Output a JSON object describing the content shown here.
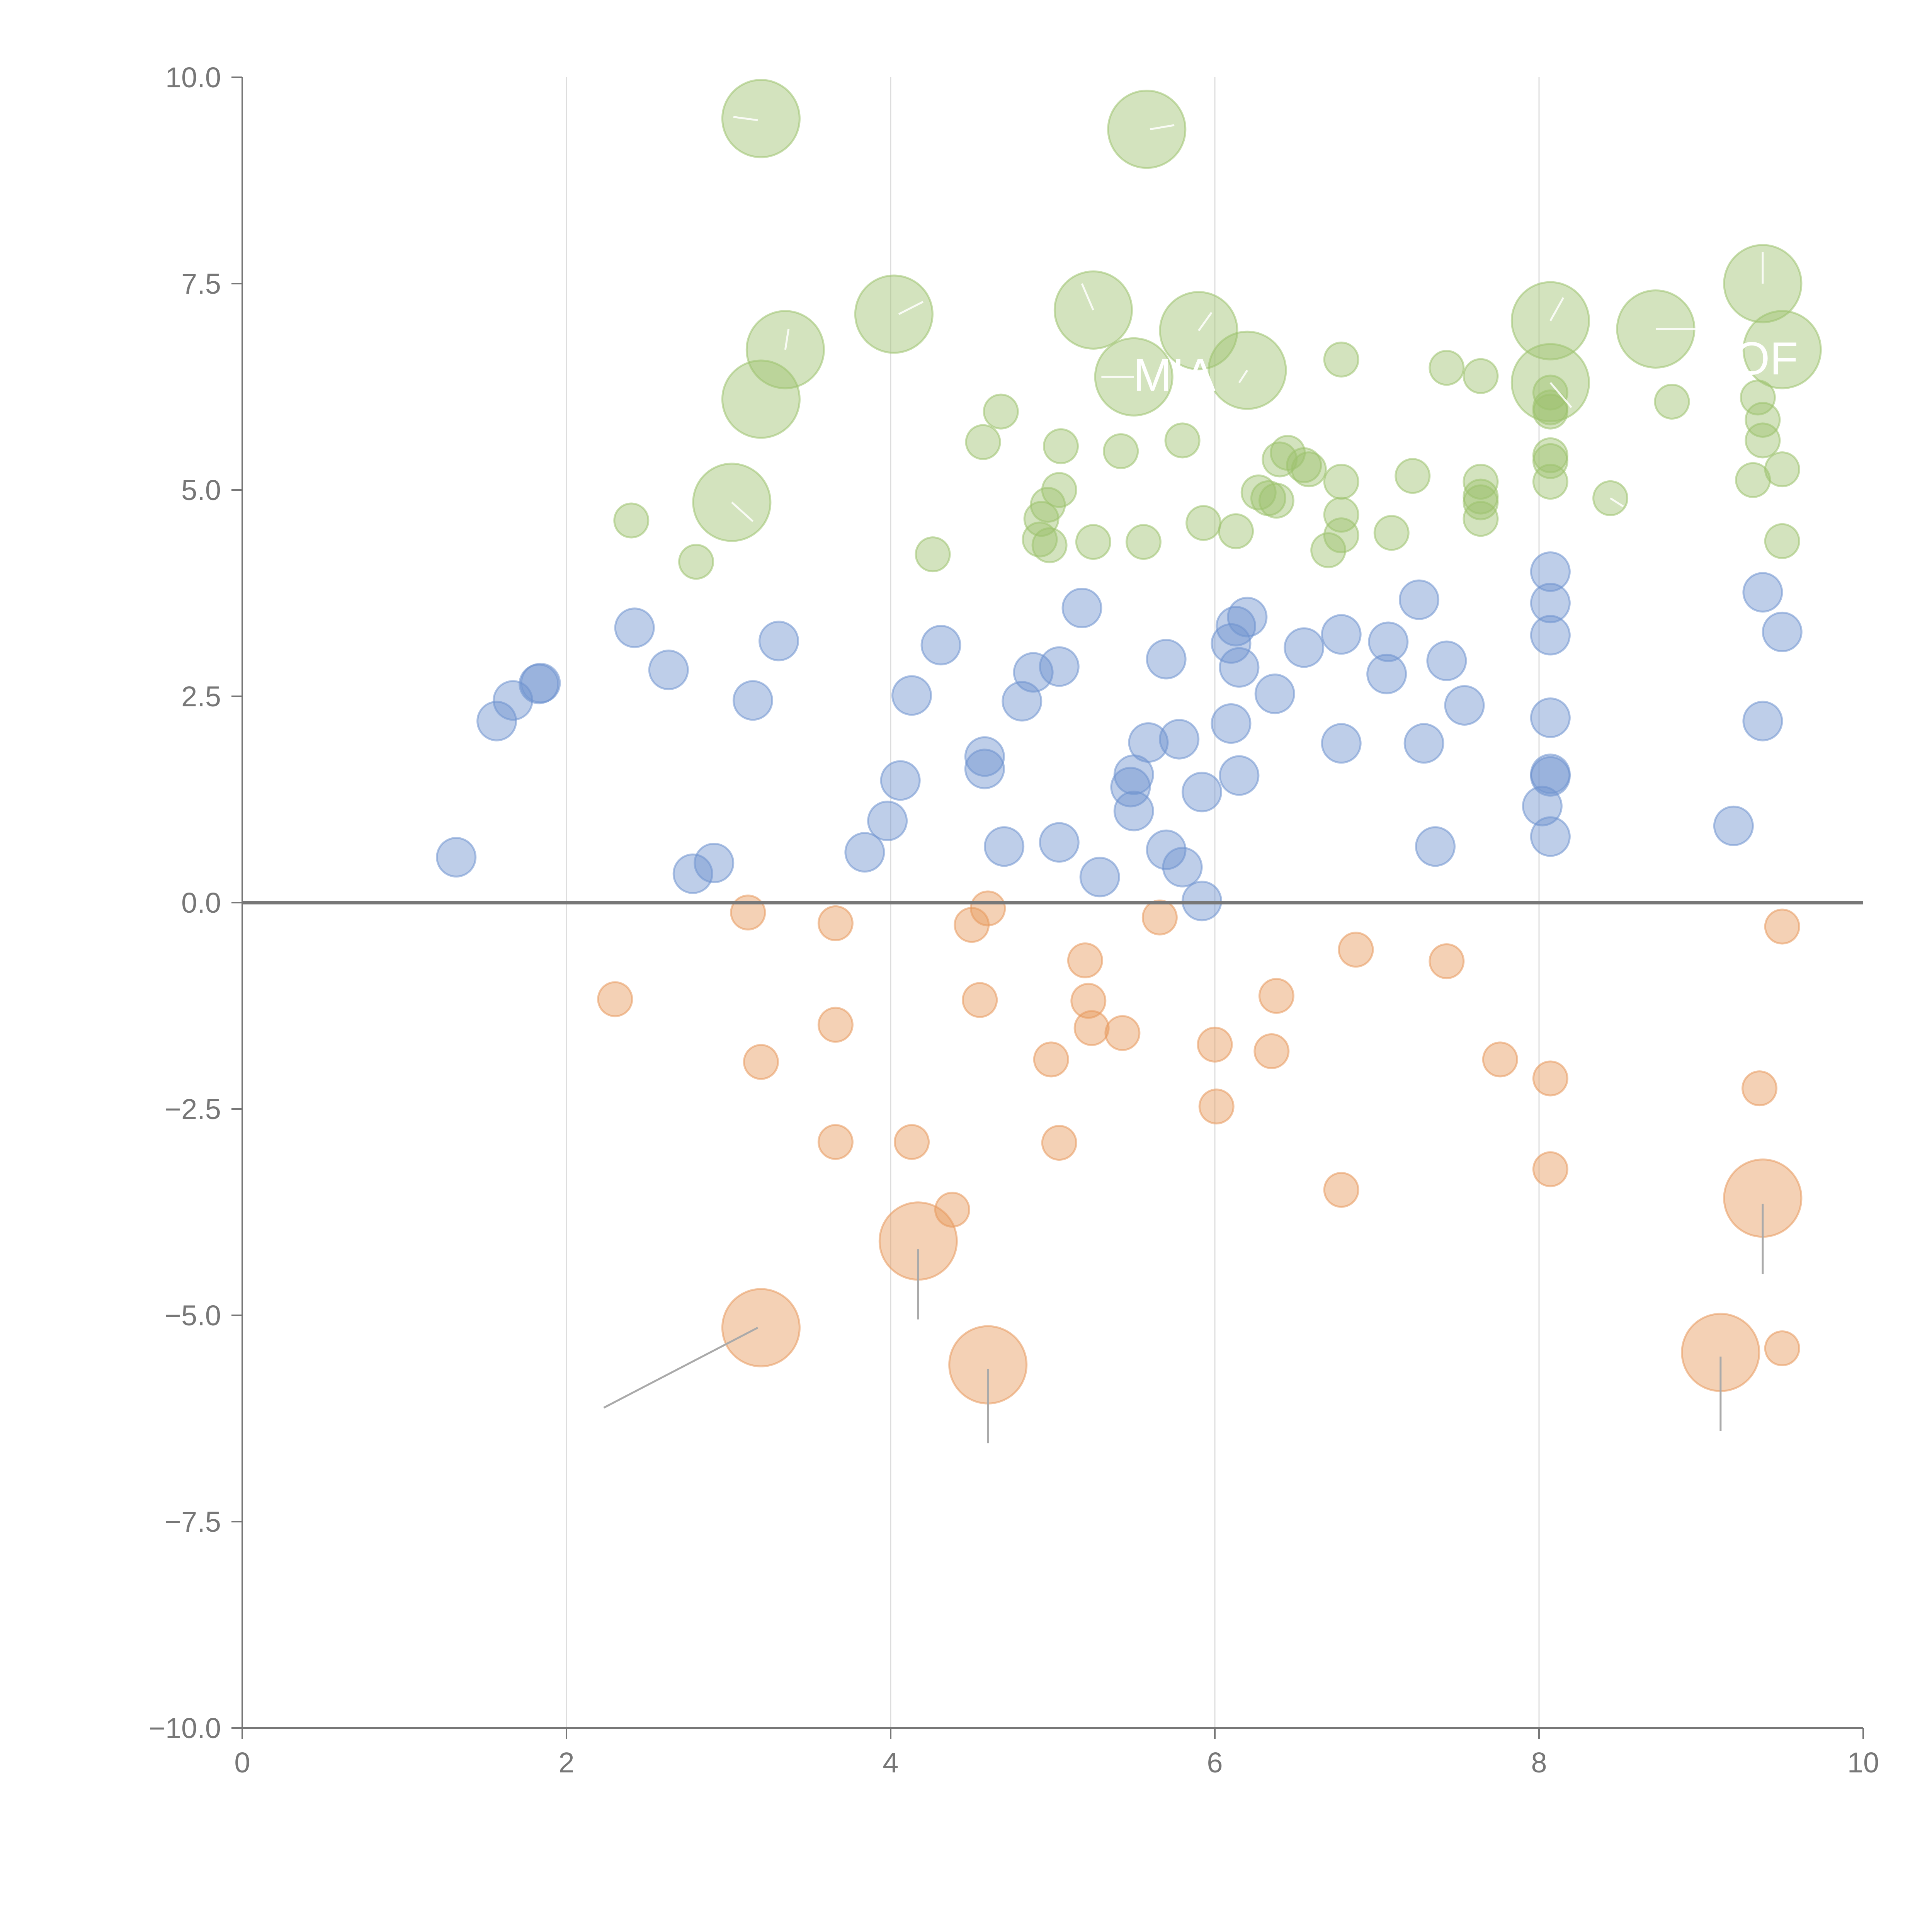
{
  "chart_data": {
    "type": "scatter",
    "subtype": "bubble",
    "title": "",
    "xlabel": "",
    "ylabel": "",
    "xlim": [
      0,
      10
    ],
    "ylim": [
      -10,
      10
    ],
    "grid": "vertical",
    "x_ticks": [
      "0",
      "2",
      "4",
      "6",
      "8",
      "10"
    ],
    "y_ticks": [
      "10.0",
      "7.5",
      "5.0",
      "2.5",
      "0.0",
      "−2.5",
      "−5.0",
      "−7.5",
      "−10.0"
    ],
    "reference_line_y": 0,
    "colors": {
      "green": "#9dc26e",
      "blue": "#6f93cf",
      "orange": "#e7995c"
    },
    "annotations": [
      {
        "text": "MIA",
        "x": 5.75,
        "y": 6.2
      },
      {
        "text": "OF",
        "x": 9.4,
        "y": 6.4
      }
    ],
    "series": [
      {
        "name": "green",
        "color": "#9dc26e",
        "points": [
          {
            "x": 3.2,
            "y": 9.5,
            "r": "l"
          },
          {
            "x": 5.58,
            "y": 9.37,
            "r": "l"
          },
          {
            "x": 4.02,
            "y": 7.13,
            "r": "l"
          },
          {
            "x": 5.25,
            "y": 7.18,
            "r": "l"
          },
          {
            "x": 5.9,
            "y": 6.93,
            "r": "l"
          },
          {
            "x": 3.35,
            "y": 6.7,
            "r": "l"
          },
          {
            "x": 6.2,
            "y": 6.45,
            "r": "l"
          },
          {
            "x": 5.5,
            "y": 6.37,
            "r": "l"
          },
          {
            "x": 3.2,
            "y": 6.1,
            "r": "l"
          },
          {
            "x": 3.02,
            "y": 4.85,
            "r": "l"
          },
          {
            "x": 8.07,
            "y": 7.05,
            "r": "l"
          },
          {
            "x": 8.72,
            "y": 6.95,
            "r": "l"
          },
          {
            "x": 9.38,
            "y": 7.5,
            "r": "l"
          },
          {
            "x": 9.5,
            "y": 6.7,
            "r": "l"
          },
          {
            "x": 8.07,
            "y": 6.3,
            "r": "l"
          },
          {
            "x": 6.78,
            "y": 6.58,
            "r": "s"
          },
          {
            "x": 7.43,
            "y": 6.48,
            "r": "s"
          },
          {
            "x": 7.64,
            "y": 6.38,
            "r": "s"
          },
          {
            "x": 8.82,
            "y": 6.07,
            "r": "s"
          },
          {
            "x": 4.68,
            "y": 5.95,
            "r": "s"
          },
          {
            "x": 4.57,
            "y": 5.58,
            "r": "s"
          },
          {
            "x": 5.05,
            "y": 5.53,
            "r": "s"
          },
          {
            "x": 5.42,
            "y": 5.47,
            "r": "s"
          },
          {
            "x": 5.8,
            "y": 5.6,
            "r": "s"
          },
          {
            "x": 6.4,
            "y": 5.37,
            "r": "s"
          },
          {
            "x": 6.45,
            "y": 5.45,
            "r": "s"
          },
          {
            "x": 6.55,
            "y": 5.3,
            "r": "s"
          },
          {
            "x": 6.58,
            "y": 5.25,
            "r": "s"
          },
          {
            "x": 6.78,
            "y": 5.1,
            "r": "s"
          },
          {
            "x": 7.22,
            "y": 5.17,
            "r": "s"
          },
          {
            "x": 7.64,
            "y": 5.1,
            "r": "s"
          },
          {
            "x": 7.64,
            "y": 4.92,
            "r": "s"
          },
          {
            "x": 7.64,
            "y": 4.85,
            "r": "s"
          },
          {
            "x": 7.64,
            "y": 4.65,
            "r": "s"
          },
          {
            "x": 8.07,
            "y": 5.42,
            "r": "s"
          },
          {
            "x": 8.07,
            "y": 5.35,
            "r": "s"
          },
          {
            "x": 8.07,
            "y": 5.1,
            "r": "s"
          },
          {
            "x": 8.44,
            "y": 4.9,
            "r": "s"
          },
          {
            "x": 8.07,
            "y": 6.18,
            "r": "s"
          },
          {
            "x": 8.07,
            "y": 6.0,
            "r": "s"
          },
          {
            "x": 8.07,
            "y": 5.95,
            "r": "s"
          },
          {
            "x": 9.35,
            "y": 6.12,
            "r": "s"
          },
          {
            "x": 9.38,
            "y": 5.85,
            "r": "s"
          },
          {
            "x": 9.38,
            "y": 5.6,
            "r": "s"
          },
          {
            "x": 9.5,
            "y": 5.25,
            "r": "s"
          },
          {
            "x": 9.32,
            "y": 5.12,
            "r": "s"
          },
          {
            "x": 9.5,
            "y": 4.38,
            "r": "s"
          },
          {
            "x": 2.4,
            "y": 4.63,
            "r": "s"
          },
          {
            "x": 2.8,
            "y": 4.13,
            "r": "s"
          },
          {
            "x": 4.26,
            "y": 4.22,
            "r": "s"
          },
          {
            "x": 4.97,
            "y": 4.82,
            "r": "s"
          },
          {
            "x": 5.04,
            "y": 5.0,
            "r": "s"
          },
          {
            "x": 4.93,
            "y": 4.65,
            "r": "s"
          },
          {
            "x": 4.92,
            "y": 4.4,
            "r": "s"
          },
          {
            "x": 4.98,
            "y": 4.33,
            "r": "s"
          },
          {
            "x": 5.25,
            "y": 4.37,
            "r": "s"
          },
          {
            "x": 5.56,
            "y": 4.37,
            "r": "s"
          },
          {
            "x": 5.93,
            "y": 4.6,
            "r": "s"
          },
          {
            "x": 6.13,
            "y": 4.5,
            "r": "s"
          },
          {
            "x": 6.27,
            "y": 4.97,
            "r": "s"
          },
          {
            "x": 6.33,
            "y": 4.9,
            "r": "s"
          },
          {
            "x": 6.38,
            "y": 4.87,
            "r": "s"
          },
          {
            "x": 6.7,
            "y": 4.27,
            "r": "s"
          },
          {
            "x": 6.78,
            "y": 4.45,
            "r": "s"
          },
          {
            "x": 6.78,
            "y": 4.7,
            "r": "s"
          },
          {
            "x": 7.09,
            "y": 4.48,
            "r": "s"
          }
        ]
      },
      {
        "name": "blue",
        "color": "#6f93cf",
        "points": [
          {
            "x": 1.32,
            "y": 0.55
          },
          {
            "x": 1.57,
            "y": 2.2
          },
          {
            "x": 1.67,
            "y": 2.45
          },
          {
            "x": 1.83,
            "y": 2.65
          },
          {
            "x": 1.84,
            "y": 2.66
          },
          {
            "x": 2.42,
            "y": 3.33
          },
          {
            "x": 2.63,
            "y": 2.82
          },
          {
            "x": 2.78,
            "y": 0.35
          },
          {
            "x": 2.91,
            "y": 0.48
          },
          {
            "x": 3.15,
            "y": 2.45
          },
          {
            "x": 3.31,
            "y": 3.17
          },
          {
            "x": 3.84,
            "y": 0.61
          },
          {
            "x": 3.98,
            "y": 0.99
          },
          {
            "x": 4.06,
            "y": 1.48
          },
          {
            "x": 4.13,
            "y": 2.51
          },
          {
            "x": 4.31,
            "y": 3.12
          },
          {
            "x": 4.58,
            "y": 1.62
          },
          {
            "x": 4.58,
            "y": 1.77
          },
          {
            "x": 4.7,
            "y": 0.68
          },
          {
            "x": 4.81,
            "y": 2.44
          },
          {
            "x": 4.88,
            "y": 2.79
          },
          {
            "x": 5.04,
            "y": 2.86
          },
          {
            "x": 5.04,
            "y": 0.73
          },
          {
            "x": 5.18,
            "y": 3.57
          },
          {
            "x": 5.29,
            "y": 0.31
          },
          {
            "x": 5.48,
            "y": 1.4
          },
          {
            "x": 5.5,
            "y": 1.11
          },
          {
            "x": 5.5,
            "y": 1.55
          },
          {
            "x": 5.59,
            "y": 1.94
          },
          {
            "x": 5.7,
            "y": 2.95
          },
          {
            "x": 5.7,
            "y": 0.64
          },
          {
            "x": 5.78,
            "y": 1.98
          },
          {
            "x": 5.8,
            "y": 0.43
          },
          {
            "x": 5.92,
            "y": 0.02
          },
          {
            "x": 5.92,
            "y": 1.34
          },
          {
            "x": 6.1,
            "y": 2.17
          },
          {
            "x": 6.1,
            "y": 3.14
          },
          {
            "x": 6.13,
            "y": 3.35
          },
          {
            "x": 6.15,
            "y": 2.85
          },
          {
            "x": 6.15,
            "y": 1.54
          },
          {
            "x": 6.2,
            "y": 3.46
          },
          {
            "x": 6.37,
            "y": 2.53
          },
          {
            "x": 6.55,
            "y": 3.09
          },
          {
            "x": 6.78,
            "y": 1.93
          },
          {
            "x": 6.78,
            "y": 3.25
          },
          {
            "x": 7.06,
            "y": 2.77
          },
          {
            "x": 7.07,
            "y": 3.16
          },
          {
            "x": 7.26,
            "y": 3.67
          },
          {
            "x": 7.29,
            "y": 1.93
          },
          {
            "x": 7.36,
            "y": 0.68
          },
          {
            "x": 7.43,
            "y": 2.93
          },
          {
            "x": 7.54,
            "y": 2.39
          },
          {
            "x": 8.02,
            "y": 1.17
          },
          {
            "x": 8.07,
            "y": 0.8
          },
          {
            "x": 8.07,
            "y": 1.53
          },
          {
            "x": 8.07,
            "y": 1.56
          },
          {
            "x": 8.07,
            "y": 2.24
          },
          {
            "x": 8.07,
            "y": 3.24
          },
          {
            "x": 8.07,
            "y": 3.63
          },
          {
            "x": 8.07,
            "y": 4.01
          },
          {
            "x": 9.2,
            "y": 0.93
          },
          {
            "x": 9.38,
            "y": 2.2
          },
          {
            "x": 9.38,
            "y": 3.76
          },
          {
            "x": 9.5,
            "y": 3.28
          }
        ]
      },
      {
        "name": "orange",
        "color": "#e7995c",
        "points": [
          {
            "x": 2.3,
            "y": -1.17,
            "r": "s"
          },
          {
            "x": 3.12,
            "y": -0.12,
            "r": "s"
          },
          {
            "x": 3.2,
            "y": -1.93,
            "r": "s"
          },
          {
            "x": 3.66,
            "y": -0.25,
            "r": "s"
          },
          {
            "x": 3.66,
            "y": -1.48,
            "r": "s"
          },
          {
            "x": 3.66,
            "y": -2.9,
            "r": "s"
          },
          {
            "x": 4.13,
            "y": -2.9,
            "r": "s"
          },
          {
            "x": 4.38,
            "y": -3.72,
            "r": "s"
          },
          {
            "x": 4.5,
            "y": -0.27,
            "r": "s"
          },
          {
            "x": 4.55,
            "y": -1.18,
            "r": "s"
          },
          {
            "x": 4.6,
            "y": -0.07,
            "r": "s"
          },
          {
            "x": 4.99,
            "y": -1.9,
            "r": "s"
          },
          {
            "x": 5.04,
            "y": -2.91,
            "r": "s"
          },
          {
            "x": 5.2,
            "y": -0.7,
            "r": "s"
          },
          {
            "x": 5.22,
            "y": -1.19,
            "r": "s"
          },
          {
            "x": 5.24,
            "y": -1.52,
            "r": "s"
          },
          {
            "x": 5.43,
            "y": -1.58,
            "r": "s"
          },
          {
            "x": 5.66,
            "y": -0.18,
            "r": "s"
          },
          {
            "x": 6.0,
            "y": -1.72,
            "r": "s"
          },
          {
            "x": 6.01,
            "y": -2.47,
            "r": "s"
          },
          {
            "x": 6.35,
            "y": -1.8,
            "r": "s"
          },
          {
            "x": 6.38,
            "y": -1.13,
            "r": "s"
          },
          {
            "x": 6.78,
            "y": -3.48,
            "r": "s"
          },
          {
            "x": 6.87,
            "y": -0.57,
            "r": "s"
          },
          {
            "x": 7.43,
            "y": -0.71,
            "r": "s"
          },
          {
            "x": 7.76,
            "y": -1.9,
            "r": "s"
          },
          {
            "x": 8.07,
            "y": -2.13,
            "r": "s"
          },
          {
            "x": 8.07,
            "y": -3.23,
            "r": "s"
          },
          {
            "x": 9.36,
            "y": -2.25,
            "r": "s"
          },
          {
            "x": 9.5,
            "y": -0.29,
            "r": "s"
          },
          {
            "x": 9.5,
            "y": -5.4,
            "r": "s"
          },
          {
            "x": 3.2,
            "y": -5.15,
            "r": "l"
          },
          {
            "x": 4.17,
            "y": -4.1,
            "r": "l"
          },
          {
            "x": 4.6,
            "y": -5.6,
            "r": "l"
          },
          {
            "x": 9.12,
            "y": -5.45,
            "r": "l"
          },
          {
            "x": 9.38,
            "y": -3.58,
            "r": "l"
          }
        ]
      }
    ],
    "leader_lines": [
      {
        "color": "gray",
        "x1": 2.23,
        "y1": -6.12,
        "x2": 3.18,
        "y2": -5.15
      },
      {
        "color": "gray",
        "x1": 4.17,
        "y1": -4.2,
        "x2": 4.17,
        "y2": -5.05
      },
      {
        "color": "gray",
        "x1": 4.6,
        "y1": -5.65,
        "x2": 4.6,
        "y2": -6.55
      },
      {
        "color": "gray",
        "x1": 9.12,
        "y1": -5.5,
        "x2": 9.12,
        "y2": -6.4
      },
      {
        "color": "gray",
        "x1": 9.38,
        "y1": -3.65,
        "x2": 9.38,
        "y2": -4.5
      },
      {
        "color": "white",
        "x1": 3.03,
        "y1": 9.52,
        "x2": 3.18,
        "y2": 9.48
      },
      {
        "color": "white",
        "x1": 5.6,
        "y1": 9.37,
        "x2": 5.75,
        "y2": 9.42
      },
      {
        "color": "white",
        "x1": 4.05,
        "y1": 7.13,
        "x2": 4.2,
        "y2": 7.28
      },
      {
        "color": "white",
        "x1": 5.25,
        "y1": 7.18,
        "x2": 5.18,
        "y2": 7.5
      },
      {
        "color": "white",
        "x1": 5.9,
        "y1": 6.93,
        "x2": 5.98,
        "y2": 7.15
      },
      {
        "color": "white",
        "x1": 3.35,
        "y1": 6.7,
        "x2": 3.37,
        "y2": 6.95
      },
      {
        "color": "white",
        "x1": 6.2,
        "y1": 6.45,
        "x2": 6.15,
        "y2": 6.3
      },
      {
        "color": "white",
        "x1": 5.5,
        "y1": 6.37,
        "x2": 5.3,
        "y2": 6.37
      },
      {
        "color": "white",
        "x1": 3.02,
        "y1": 4.85,
        "x2": 3.15,
        "y2": 4.62
      },
      {
        "color": "white",
        "x1": 8.07,
        "y1": 7.05,
        "x2": 8.15,
        "y2": 7.33
      },
      {
        "color": "white",
        "x1": 8.72,
        "y1": 6.95,
        "x2": 8.97,
        "y2": 6.95
      },
      {
        "color": "white",
        "x1": 9.38,
        "y1": 7.5,
        "x2": 9.38,
        "y2": 7.88
      },
      {
        "color": "white",
        "x1": 8.07,
        "y1": 6.3,
        "x2": 8.2,
        "y2": 6.0
      },
      {
        "color": "white",
        "x1": 8.44,
        "y1": 4.9,
        "x2": 8.52,
        "y2": 4.8
      }
    ]
  }
}
